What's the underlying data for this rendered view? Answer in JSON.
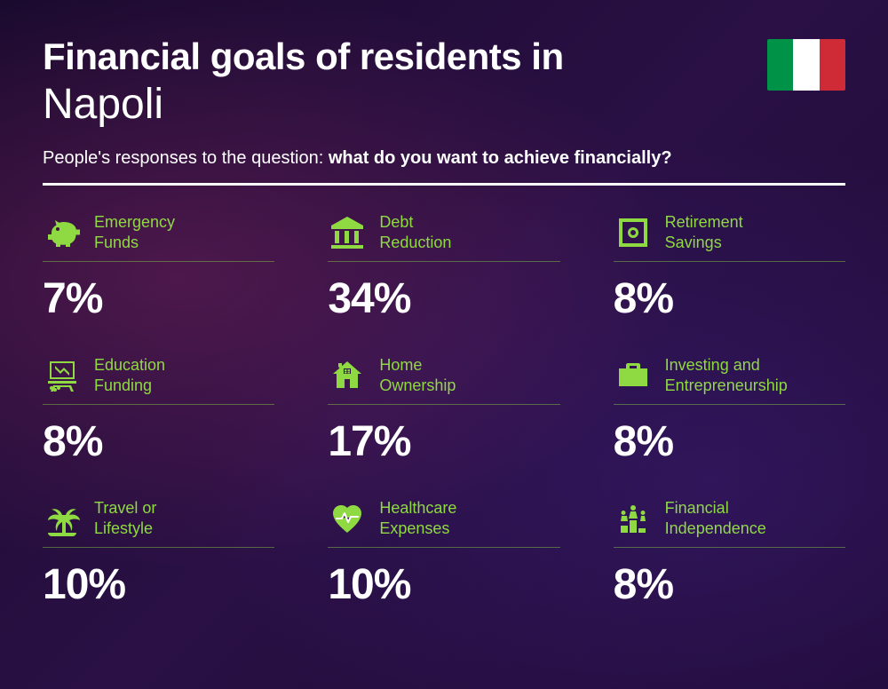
{
  "header": {
    "title_line1": "Financial goals of residents in",
    "title_line2": "Napoli",
    "subtitle_prefix": "People's responses to the question: ",
    "subtitle_bold": "what do you want to achieve financially?"
  },
  "flag": {
    "colors": [
      "#009246",
      "#ffffff",
      "#ce2b37"
    ]
  },
  "colors": {
    "accent": "#8fd943",
    "text": "#ffffff",
    "divider": "#ffffff"
  },
  "items": [
    {
      "icon": "piggy-bank",
      "label": "Emergency\nFunds",
      "percent": "7%"
    },
    {
      "icon": "bank",
      "label": "Debt\nReduction",
      "percent": "34%"
    },
    {
      "icon": "safe",
      "label": "Retirement\nSavings",
      "percent": "8%"
    },
    {
      "icon": "presentation",
      "label": "Education\nFunding",
      "percent": "8%"
    },
    {
      "icon": "house",
      "label": "Home\nOwnership",
      "percent": "17%"
    },
    {
      "icon": "briefcase",
      "label": "Investing and\nEntrepreneurship",
      "percent": "8%"
    },
    {
      "icon": "palm",
      "label": "Travel or\nLifestyle",
      "percent": "10%"
    },
    {
      "icon": "heart-pulse",
      "label": "Healthcare\nExpenses",
      "percent": "10%"
    },
    {
      "icon": "podium",
      "label": "Financial\nIndependence",
      "percent": "8%"
    }
  ]
}
